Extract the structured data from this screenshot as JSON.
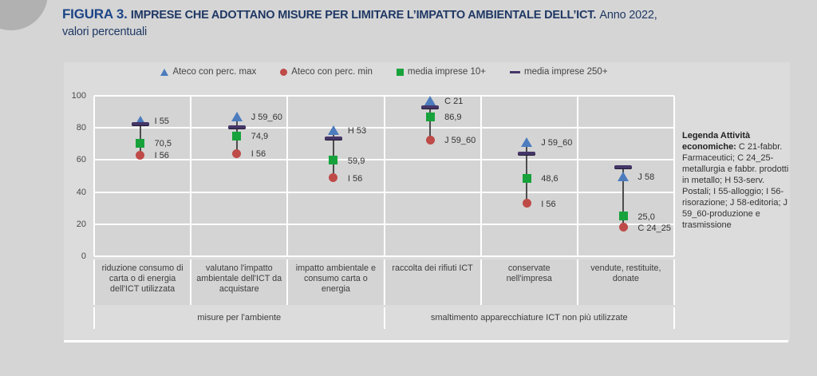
{
  "page": {
    "title_prefix": "FIGURA 3.",
    "title_main": "IMPRESE CHE ADOTTANO MISURE PER LIMITARE L’IMPATTO AMBIENTALE DELL’ICT.",
    "title_suffix": "Anno 2022,",
    "title_line2": "valori percentuali"
  },
  "side_legend": {
    "lead": "Legenda Attività economiche:",
    "body": "C 21-fabbr. Farmaceutici; C 24_25-metallurgia e fabbr. prodotti in metallo; H 53-serv. Postali; I 55-alloggio; I 56-risorazione; J 58-editoria; J 59_60-produzione e trasmissione"
  },
  "chart_data": {
    "type": "scatter",
    "title": "Imprese che adottano misure per limitare l'impatto ambientale dell'ICT. Anno 2022, valori percentuali",
    "ylim": [
      0,
      100
    ],
    "yticks": [
      0,
      20,
      40,
      60,
      80,
      100
    ],
    "grid": true,
    "legend_position": "top",
    "colors": {
      "max": "#4c7cbe",
      "min": "#be4b48",
      "media10": "#17a23b",
      "media250": "#453668"
    },
    "series_legend": [
      {
        "name": "Ateco con perc. max",
        "marker": "triangle",
        "color_key": "max"
      },
      {
        "name": "Ateco con perc. min",
        "marker": "circle",
        "color_key": "min"
      },
      {
        "name": "media imprese 10+",
        "marker": "square",
        "color_key": "media10"
      },
      {
        "name": "media imprese 250+",
        "marker": "dash",
        "color_key": "media250"
      }
    ],
    "groups": [
      {
        "label": "misure per l'ambiente",
        "span": [
          0,
          2
        ]
      },
      {
        "label": "smaltimento apparecchiature ICT non più utilizzate",
        "span": [
          3,
          5
        ]
      }
    ],
    "categories": [
      {
        "label": "riduzione consumo di carta o di energia dell'ICT utilizzata",
        "max": {
          "value": 84.5,
          "label": "I 55"
        },
        "min": {
          "value": 63,
          "label": "I 56"
        },
        "media10": {
          "value": 70.5,
          "label": "70,5"
        },
        "media250": {
          "value": 82.5
        }
      },
      {
        "label": "valutano l'impatto ambientale dell'ICT da acquistare",
        "max": {
          "value": 87,
          "label": "J 59_60"
        },
        "min": {
          "value": 64,
          "label": "I 56"
        },
        "media10": {
          "value": 74.9,
          "label": "74,9"
        },
        "media250": {
          "value": 80.5
        }
      },
      {
        "label": "impatto ambientale e consumo carta o energia",
        "max": {
          "value": 78.5,
          "label": "H 53"
        },
        "min": {
          "value": 49,
          "label": "I 56"
        },
        "media10": {
          "value": 59.9,
          "label": "59,9"
        },
        "media250": {
          "value": 73.5
        }
      },
      {
        "label": "raccolta dei rifiuti ICT",
        "max": {
          "value": 97,
          "label": "C 21"
        },
        "min": {
          "value": 72.5,
          "label": "J 59_60"
        },
        "media10": {
          "value": 86.9,
          "label": "86,9"
        },
        "media250": {
          "value": 93
        }
      },
      {
        "label": "conservate nell'impresa",
        "max": {
          "value": 71,
          "label": "J 59_60"
        },
        "min": {
          "value": 33,
          "label": "I 56"
        },
        "media10": {
          "value": 48.6,
          "label": "48,6"
        },
        "media250": {
          "value": 64
        }
      },
      {
        "label": "vendute, restituite, donate",
        "max": {
          "value": 50,
          "label": "J 58"
        },
        "min": {
          "value": 18,
          "label": "C 24_25"
        },
        "media10": {
          "value": 25,
          "label": "25,0"
        },
        "media250": {
          "value": 55.5
        }
      }
    ]
  }
}
